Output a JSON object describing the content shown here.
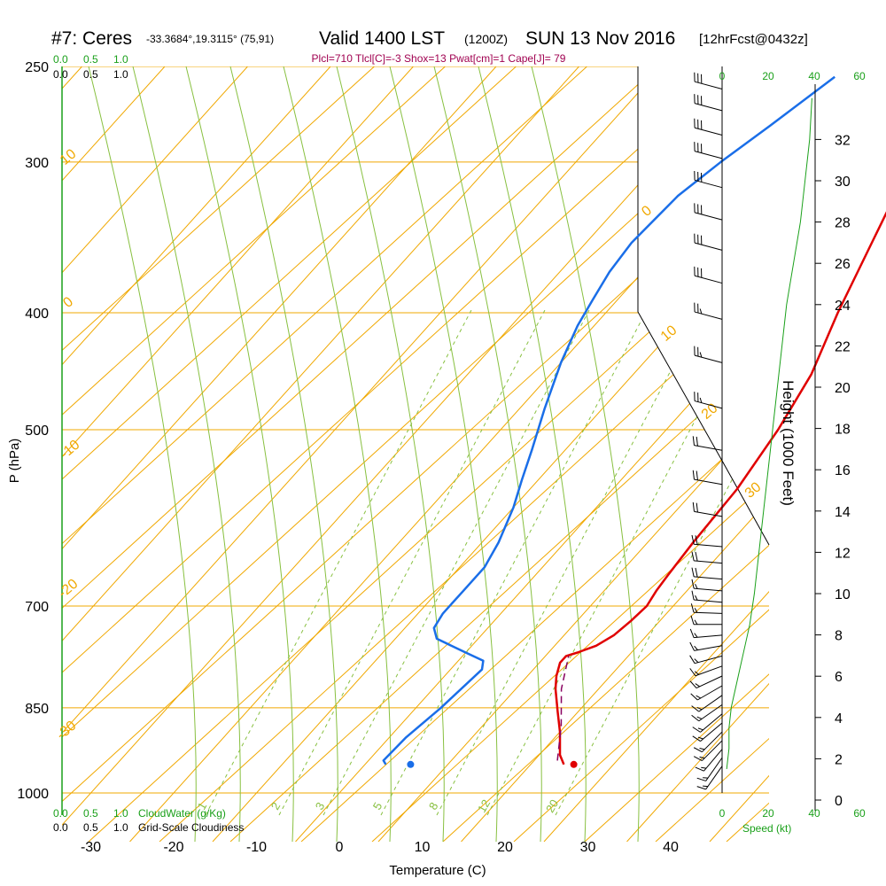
{
  "header": {
    "station": "#7: Ceres",
    "coords": "-33.3684°,19.3115° (75,91)",
    "valid": "Valid 1400 LST",
    "zulu": "(1200Z)",
    "date": "SUN 13 Nov 2016",
    "forecast": "[12hrFcst@0432z]",
    "indices": "Plcl=710 Tlcl[C]=-3 Shox=13 Pwat[cm]=1 Cape[J]= 79"
  },
  "labels": {
    "cloudwater_ticks": [
      "0.0",
      "0.5",
      "1.0"
    ],
    "cloudiness_ticks": [
      "0.0",
      "0.5",
      "1.0"
    ],
    "cloudwater_title": "CloudWater (g/Kg)",
    "cloudiness_title": "Grid-Scale Cloudiness",
    "speed_ticks": [
      "0",
      "20",
      "40",
      "60"
    ],
    "speed_title": "Speed (kt)"
  },
  "colors": {
    "isotherm": "#f0a800",
    "mixing_ratio": "#88c040",
    "temperature": "#e00000",
    "dewpoint": "#1a6ee8",
    "parcel": "#880060",
    "wind": "#000000",
    "speed": "#1aa01a",
    "cloudwater": "#1aa01a",
    "indices": "#a00050"
  },
  "chart_data": {
    "type": "line",
    "subtype": "skew-t log-p sounding",
    "xlabel": "Temperature (C)",
    "ylabel": "P (hPa)",
    "y2label": "Height (1000 Feet)",
    "x_ticks": [
      -30,
      -20,
      -10,
      0,
      10,
      20,
      30,
      40
    ],
    "p_ticks": [
      250,
      300,
      400,
      500,
      700,
      850,
      1000
    ],
    "height_ticks": [
      0,
      2,
      4,
      6,
      8,
      10,
      12,
      14,
      16,
      18,
      20,
      22,
      24,
      26,
      28,
      30,
      32
    ],
    "isotherm_labels": [
      {
        "value": "0",
        "x": 733,
        "y": 242
      },
      {
        "value": "10",
        "x": 758,
        "y": 380
      },
      {
        "value": "20",
        "x": 804,
        "y": 468
      },
      {
        "value": "30",
        "x": 853,
        "y": 557
      },
      {
        "value": "10",
        "x": 80,
        "y": 181
      },
      {
        "value": "0",
        "x": 80,
        "y": 345
      },
      {
        "value": "-10",
        "x": 82,
        "y": 511
      },
      {
        "value": "-20",
        "x": 80,
        "y": 668
      },
      {
        "value": "-30",
        "x": 78,
        "y": 828
      }
    ],
    "mixing_ratio_labels": [
      {
        "value": "1",
        "x": 232,
        "y": 912
      },
      {
        "value": "2",
        "x": 315,
        "y": 912
      },
      {
        "value": "3",
        "x": 365,
        "y": 912
      },
      {
        "value": "5",
        "x": 430,
        "y": 912
      },
      {
        "value": "8",
        "x": 493,
        "y": 912
      },
      {
        "value": "12",
        "x": 550,
        "y": 912
      },
      {
        "value": "20",
        "x": 627,
        "y": 912
      }
    ],
    "series": [
      {
        "name": "Temperature",
        "points": [
          [
            24.0,
            947
          ],
          [
            22.5,
            930
          ],
          [
            20.0,
            890
          ],
          [
            17.5,
            856
          ],
          [
            14.8,
            820
          ],
          [
            13.5,
            800
          ],
          [
            12.5,
            780
          ],
          [
            12.5,
            770
          ],
          [
            13.5,
            765
          ],
          [
            15.0,
            755
          ],
          [
            16.0,
            740
          ],
          [
            16.5,
            720
          ],
          [
            16.8,
            700
          ],
          [
            16.3,
            680
          ],
          [
            16.0,
            660
          ],
          [
            15.5,
            620
          ],
          [
            15.0,
            560
          ],
          [
            13.5,
            500
          ],
          [
            11.5,
            450
          ],
          [
            8.0,
            400
          ],
          [
            4.5,
            350
          ],
          [
            0.5,
            300
          ],
          [
            -4.5,
            255
          ]
        ]
      },
      {
        "name": "Dewpoint",
        "points": [
          [
            2.5,
            947
          ],
          [
            1.8,
            940
          ],
          [
            2.0,
            900
          ],
          [
            3.0,
            850
          ],
          [
            3.8,
            790
          ],
          [
            3.0,
            777
          ],
          [
            0.0,
            765
          ],
          [
            -5.0,
            745
          ],
          [
            -6.5,
            730
          ],
          [
            -7.0,
            710
          ],
          [
            -7.0,
            680
          ],
          [
            -7.0,
            650
          ],
          [
            -8.0,
            620
          ],
          [
            -10.0,
            580
          ],
          [
            -12.0,
            550
          ],
          [
            -14.0,
            520
          ],
          [
            -17.0,
            480
          ],
          [
            -20.0,
            440
          ],
          [
            -22.0,
            410
          ],
          [
            -23.0,
            390
          ],
          [
            -24.0,
            370
          ],
          [
            -24.5,
            350
          ],
          [
            -24.0,
            320
          ],
          [
            -22.5,
            300
          ],
          [
            -20.5,
            280
          ],
          [
            -18.0,
            255
          ]
        ]
      },
      {
        "name": "Parcel",
        "points": [
          [
            22.8,
            940
          ],
          [
            19.5,
            880
          ],
          [
            15.5,
            820
          ],
          [
            12.8,
            770
          ]
        ]
      }
    ],
    "surface_points": {
      "temperature": 25.2,
      "dewpoint": 5.5
    },
    "speed_points": [
      [
        2,
        1.5
      ],
      [
        3,
        2.5
      ],
      [
        3,
        3.5
      ],
      [
        4,
        4.5
      ],
      [
        6,
        5.5
      ],
      [
        8,
        6.5
      ],
      [
        10,
        7.5
      ],
      [
        12,
        8.5
      ],
      [
        14,
        10
      ],
      [
        16,
        12
      ],
      [
        18,
        14
      ],
      [
        20,
        16
      ],
      [
        22,
        18
      ],
      [
        24,
        20
      ],
      [
        26,
        22
      ],
      [
        28,
        24
      ],
      [
        31,
        26
      ],
      [
        34,
        28
      ],
      [
        36,
        30
      ],
      [
        38,
        32
      ],
      [
        39,
        34
      ]
    ],
    "wind_levels": [
      {
        "p": 950,
        "dir": 215,
        "spd": 15
      },
      {
        "p": 935,
        "dir": 215,
        "spd": 15
      },
      {
        "p": 920,
        "dir": 220,
        "spd": 15
      },
      {
        "p": 905,
        "dir": 225,
        "spd": 15
      },
      {
        "p": 890,
        "dir": 225,
        "spd": 15
      },
      {
        "p": 875,
        "dir": 230,
        "spd": 15
      },
      {
        "p": 860,
        "dir": 230,
        "spd": 15
      },
      {
        "p": 845,
        "dir": 235,
        "spd": 15
      },
      {
        "p": 830,
        "dir": 235,
        "spd": 15
      },
      {
        "p": 815,
        "dir": 240,
        "spd": 15
      },
      {
        "p": 800,
        "dir": 245,
        "spd": 15
      },
      {
        "p": 785,
        "dir": 250,
        "spd": 15
      },
      {
        "p": 770,
        "dir": 255,
        "spd": 15
      },
      {
        "p": 755,
        "dir": 260,
        "spd": 15
      },
      {
        "p": 740,
        "dir": 265,
        "spd": 15
      },
      {
        "p": 725,
        "dir": 270,
        "spd": 15
      },
      {
        "p": 710,
        "dir": 272,
        "spd": 15
      },
      {
        "p": 695,
        "dir": 275,
        "spd": 15
      },
      {
        "p": 680,
        "dir": 275,
        "spd": 15
      },
      {
        "p": 665,
        "dir": 275,
        "spd": 20
      },
      {
        "p": 645,
        "dir": 275,
        "spd": 20
      },
      {
        "p": 625,
        "dir": 275,
        "spd": 20
      },
      {
        "p": 590,
        "dir": 280,
        "spd": 20
      },
      {
        "p": 555,
        "dir": 280,
        "spd": 20
      },
      {
        "p": 520,
        "dir": 280,
        "spd": 20
      },
      {
        "p": 480,
        "dir": 285,
        "spd": 25
      },
      {
        "p": 440,
        "dir": 285,
        "spd": 25
      },
      {
        "p": 405,
        "dir": 285,
        "spd": 25
      },
      {
        "p": 378,
        "dir": 285,
        "spd": 30
      },
      {
        "p": 355,
        "dir": 285,
        "spd": 30
      },
      {
        "p": 335,
        "dir": 285,
        "spd": 30
      },
      {
        "p": 315,
        "dir": 285,
        "spd": 30
      },
      {
        "p": 298,
        "dir": 285,
        "spd": 30
      },
      {
        "p": 285,
        "dir": 285,
        "spd": 30
      },
      {
        "p": 272,
        "dir": 285,
        "spd": 30
      },
      {
        "p": 261,
        "dir": 285,
        "spd": 30
      }
    ]
  }
}
